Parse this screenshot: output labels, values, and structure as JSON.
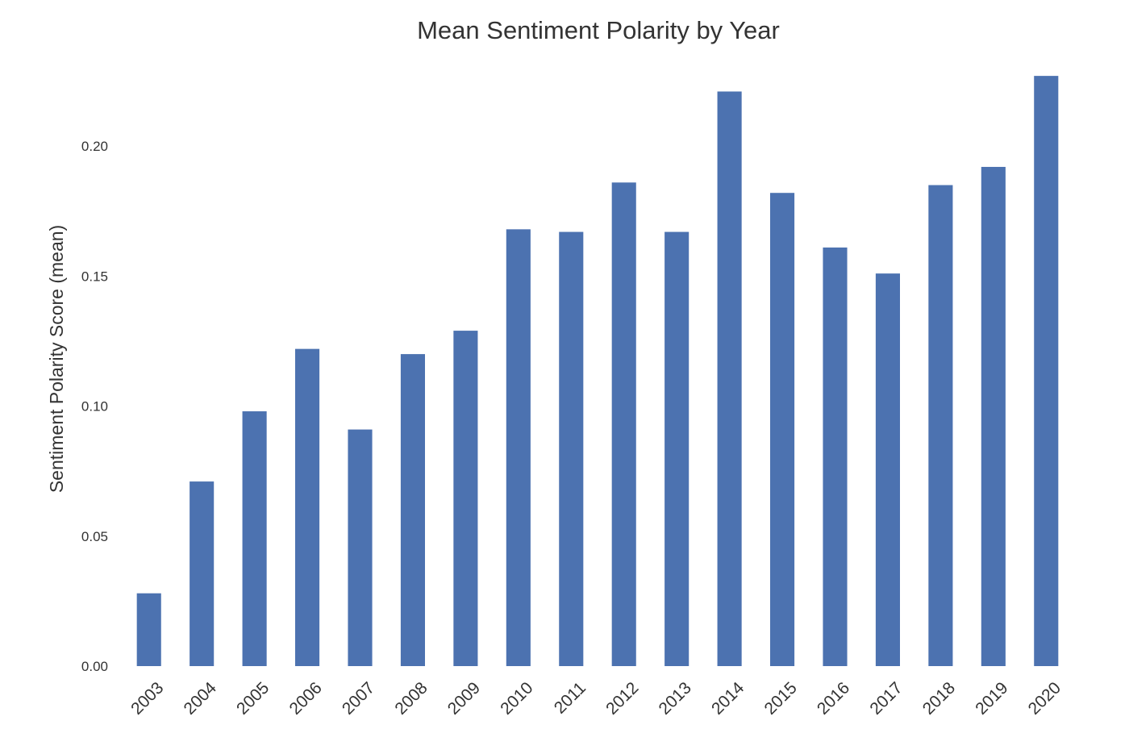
{
  "chart_data": {
    "type": "bar",
    "title": "Mean Sentiment Polarity by Year",
    "xlabel": "",
    "ylabel": "Sentiment Polarity Score (mean)",
    "categories": [
      "2003",
      "2004",
      "2005",
      "2006",
      "2007",
      "2008",
      "2009",
      "2010",
      "2011",
      "2012",
      "2013",
      "2014",
      "2015",
      "2016",
      "2017",
      "2018",
      "2019",
      "2020"
    ],
    "values": [
      0.028,
      0.071,
      0.098,
      0.122,
      0.091,
      0.12,
      0.129,
      0.168,
      0.167,
      0.186,
      0.167,
      0.221,
      0.182,
      0.161,
      0.151,
      0.185,
      0.192,
      0.227
    ],
    "ylim": [
      0,
      0.232
    ],
    "yticks": [
      "0.00",
      "0.05",
      "0.10",
      "0.15",
      "0.20"
    ],
    "ytick_values": [
      0,
      0.05,
      0.1,
      0.15,
      0.2
    ],
    "grid": false,
    "legend": "none",
    "bar_color": "#4c72b0",
    "text_color": "#333333",
    "background": "#ffffff",
    "xtick_rotation_deg": -45
  }
}
